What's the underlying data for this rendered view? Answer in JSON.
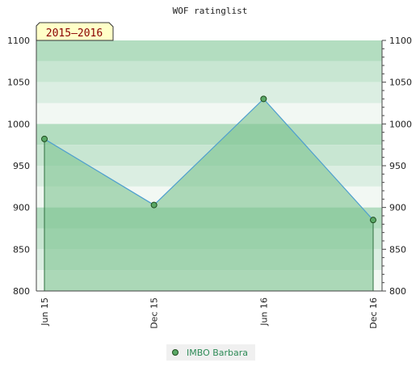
{
  "chart_data": {
    "type": "area",
    "title": "WOF ratinglist",
    "badge": "2015–2016",
    "categories": [
      "Jun 15",
      "Dec 15",
      "Jun 16",
      "Dec 16"
    ],
    "series": [
      {
        "name": "IMBO Barbara",
        "values": [
          982,
          903,
          1030,
          885
        ]
      }
    ],
    "ylim": [
      800,
      1100
    ],
    "yticks": [
      800,
      850,
      900,
      950,
      1000,
      1050,
      1100
    ],
    "grid": true,
    "legend_position": "bottom",
    "colors": {
      "line": "#4f9fcf",
      "fill": "#7cc38f",
      "marker": "#5aa866",
      "legend_text": "#2e8b57"
    }
  }
}
